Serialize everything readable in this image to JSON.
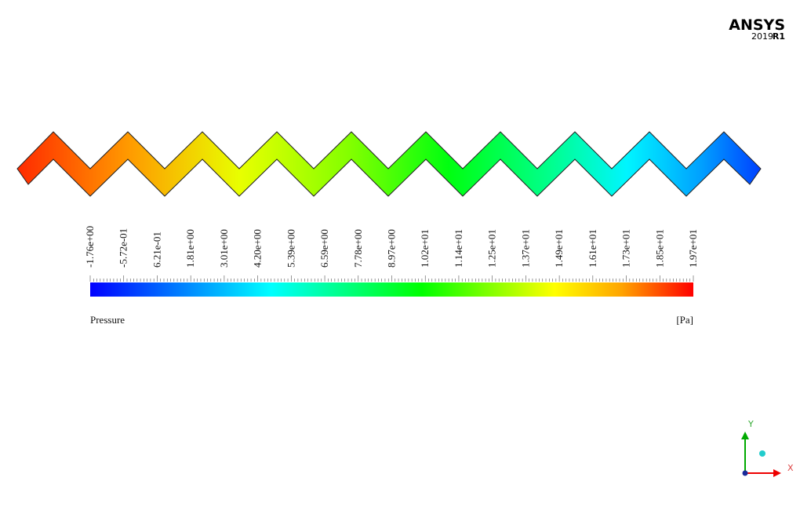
{
  "logo": {
    "name": "ANSYS",
    "version": "2019",
    "release": "R1"
  },
  "colorbar": {
    "labels": [
      "-1.76e+00",
      "-5.72e-01",
      "6.21e-01",
      "1.81e+00",
      "3.01e+00",
      "4.20e+00",
      "5.39e+00",
      "6.59e+00",
      "7.78e+00",
      "8.97e+00",
      "1.02e+01",
      "1.14e+01",
      "1.25e+01",
      "1.37e+01",
      "1.49e+01",
      "1.61e+01",
      "1.73e+01",
      "1.85e+01",
      "1.97e+01"
    ],
    "title": "Pressure",
    "unit": "[Pa]"
  },
  "axes": {
    "x": "X",
    "y": "Y"
  }
}
